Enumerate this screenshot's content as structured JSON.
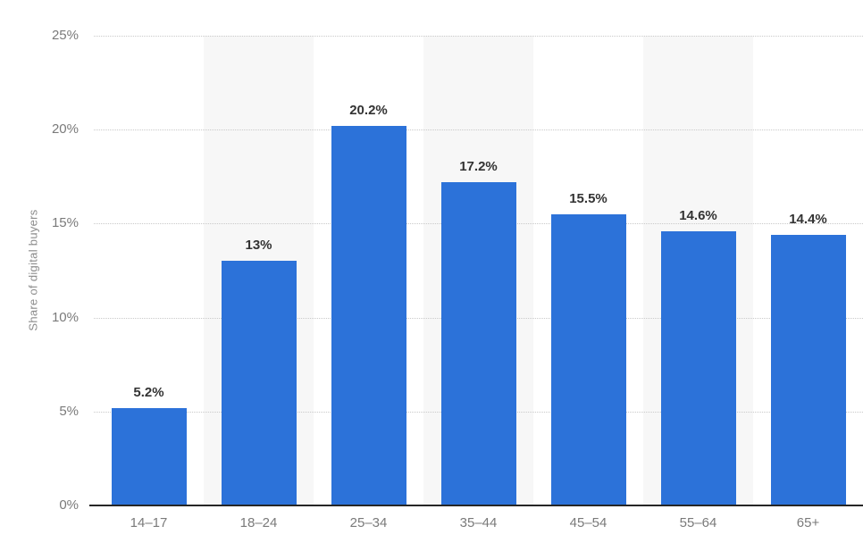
{
  "chart_data": {
    "type": "bar",
    "title": "",
    "categories": [
      "14–17",
      "18–24",
      "25–34",
      "35–44",
      "45–54",
      "55–64",
      "65+"
    ],
    "values": [
      5.2,
      13,
      20.2,
      17.2,
      15.5,
      14.6,
      14.4
    ],
    "value_labels": [
      "5.2%",
      "13%",
      "20.2%",
      "17.2%",
      "15.5%",
      "14.6%",
      "14.4%"
    ],
    "xlabel": "",
    "ylabel": "Share of digital buyers",
    "ylim": [
      0,
      25
    ],
    "yticks": [
      0,
      5,
      10,
      15,
      20,
      25
    ],
    "ytick_labels": [
      "0%",
      "5%",
      "10%",
      "15%",
      "20%",
      "25%"
    ],
    "grid": "horizontal-dotted",
    "legend_position": "none",
    "plot_background": "alternating-column-stripes",
    "colors": {
      "bar": "#2c72d9",
      "column_stripe": "#f7f7f7",
      "gridline": "#c9c9c9",
      "tick_label": "#7a7a7a",
      "value_label": "#333333",
      "axis_title": "#8c8c8c",
      "axis_line": "#262626",
      "background": "#ffffff"
    }
  }
}
